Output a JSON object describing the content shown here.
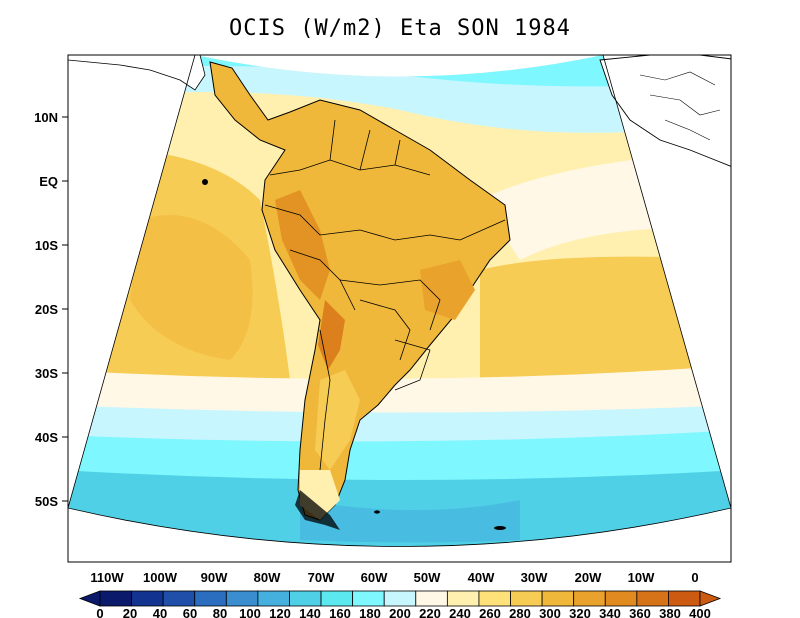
{
  "title": "OCIS (W/m2) Eta SON 1984",
  "axes": {
    "lat_ticks": [
      "10N",
      "EQ",
      "10S",
      "20S",
      "30S",
      "40S",
      "50S"
    ],
    "lon_ticks": [
      "110W",
      "100W",
      "90W",
      "80W",
      "70W",
      "60W",
      "50W",
      "40W",
      "30W",
      "20W",
      "10W",
      "0"
    ]
  },
  "colorbar": {
    "labels": [
      "0",
      "20",
      "40",
      "60",
      "80",
      "100",
      "120",
      "140",
      "160",
      "180",
      "200",
      "220",
      "240",
      "260",
      "280",
      "300",
      "320",
      "340",
      "360",
      "380",
      "400"
    ],
    "colors": [
      "#0b1a6b",
      "#12338f",
      "#1f4fa8",
      "#2b6ec0",
      "#3a8ed0",
      "#45b0dd",
      "#4fd0e6",
      "#5ce8ef",
      "#7ff7ff",
      "#c8f6ff",
      "#fff8e6",
      "#fff0b0",
      "#ffe17a",
      "#f7cc55",
      "#f0b83a",
      "#e9a22c",
      "#e08a1f",
      "#d67217",
      "#cc5a10"
    ]
  },
  "legend_colors": {
    "ocean_cool_dark": "#4fd0e6",
    "ocean_cool": "#7ff7ff",
    "ocean_light": "#c8f6ff",
    "cream": "#fff8e6",
    "pale_yellow": "#fff0b0",
    "yellow": "#f7cc55",
    "orange": "#e9a22c",
    "dark_orange": "#d67217"
  }
}
